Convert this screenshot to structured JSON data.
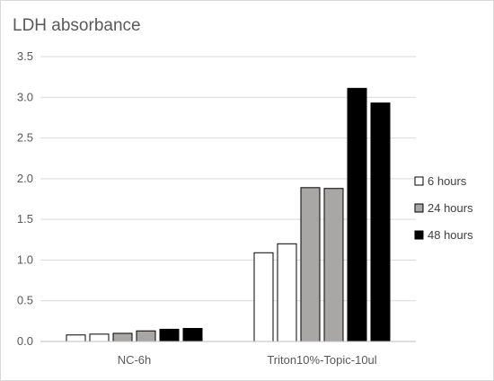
{
  "chart_data": {
    "type": "bar",
    "title": "LDH absorbance",
    "xlabel": "",
    "ylabel": "",
    "ylim": [
      0,
      3.5
    ],
    "y_ticks": [
      "0.0",
      "0.5",
      "1.0",
      "1.5",
      "2.0",
      "2.5",
      "3.0",
      "3.5"
    ],
    "grid": true,
    "legend_position": "right",
    "categories": [
      "NC-6h",
      "Triton10%-Topic-10ul"
    ],
    "series": [
      {
        "name": "6 hours",
        "color": "#ffffff",
        "values": [
          [
            0.08,
            0.09
          ],
          [
            1.09,
            1.2
          ]
        ]
      },
      {
        "name": "24 hours",
        "color": "#a9a6a6",
        "values": [
          [
            0.1,
            0.13
          ],
          [
            1.89,
            1.88
          ]
        ]
      },
      {
        "name": "48 hours",
        "color": "#000000",
        "values": [
          [
            0.15,
            0.16
          ],
          [
            3.11,
            2.93
          ]
        ]
      }
    ]
  }
}
